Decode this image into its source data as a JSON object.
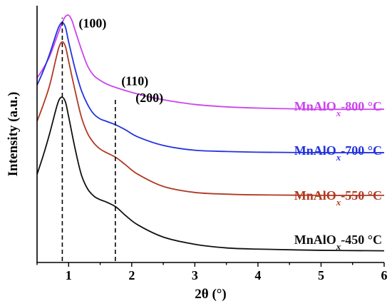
{
  "chart_data": {
    "type": "line",
    "xlabel": "2θ (°)",
    "ylabel": "Intensity (a.u.)",
    "xlim": [
      0.5,
      6
    ],
    "ylim": [
      0,
      100
    ],
    "xticks": [
      "1",
      "2",
      "3",
      "4",
      "5",
      "6"
    ],
    "yticks_shown": false,
    "grid": false,
    "legend_placement": "inline-right",
    "reference_lines": [
      {
        "x": 0.9,
        "style": "dashed",
        "ymin": 0,
        "ymax": 98
      },
      {
        "x": 1.74,
        "style": "dashed",
        "ymin": 0,
        "ymax": 65
      }
    ],
    "annotations": [
      {
        "text": "(100)",
        "x": 1.38,
        "y": 94
      },
      {
        "text": "(110)",
        "x": 2.05,
        "y": 70
      },
      {
        "text": "(200)",
        "x": 2.28,
        "y": 63
      }
    ],
    "series": [
      {
        "name": "MnAlO",
        "name_sub": "x",
        "name_suffix": "-800 °C",
        "color": "#cc44ee",
        "x": [
          0.5,
          0.6,
          0.7,
          0.8,
          0.9,
          0.95,
          1.0,
          1.05,
          1.1,
          1.2,
          1.3,
          1.4,
          1.5,
          1.6,
          1.75,
          2.0,
          2.3,
          2.6,
          3.0,
          3.5,
          4.0,
          5.0,
          6.0
        ],
        "y": [
          73,
          77,
          82,
          89,
          96,
          98.5,
          99,
          97,
          93,
          85,
          78,
          74,
          72,
          70.5,
          69,
          67,
          65,
          63.5,
          62,
          61,
          60.5,
          60,
          60
        ]
      },
      {
        "name": "MnAlO",
        "name_sub": "x",
        "name_suffix": "-700 °C",
        "color": "#2233dd",
        "x": [
          0.5,
          0.6,
          0.7,
          0.8,
          0.85,
          0.9,
          0.95,
          1.0,
          1.1,
          1.2,
          1.3,
          1.4,
          1.5,
          1.6,
          1.75,
          1.9,
          2.1,
          2.5,
          3.0,
          3.5,
          4.0,
          5.0,
          6.0
        ],
        "y": [
          70,
          76,
          83,
          91,
          94.5,
          96,
          94,
          88,
          77,
          68,
          62,
          58,
          56,
          55,
          53.5,
          51.5,
          48.5,
          45,
          43,
          42.5,
          42.2,
          42,
          42
        ]
      },
      {
        "name": "MnAlO",
        "name_sub": "x",
        "name_suffix": "-550 °C",
        "color": "#b03a22",
        "x": [
          0.5,
          0.6,
          0.7,
          0.8,
          0.85,
          0.9,
          0.95,
          1.0,
          1.1,
          1.2,
          1.3,
          1.4,
          1.5,
          1.6,
          1.75,
          1.9,
          2.1,
          2.5,
          3.0,
          3.5,
          4.0,
          5.0,
          6.0
        ],
        "y": [
          55,
          62,
          70,
          81,
          86,
          88,
          86,
          80,
          68,
          57,
          50,
          46,
          43.5,
          42,
          40,
          37,
          33,
          28,
          25.5,
          24.8,
          24.5,
          24.3,
          24.3
        ]
      },
      {
        "name": "MnAlO",
        "name_sub": "x",
        "name_suffix": "-450 °C",
        "color": "#111111",
        "x": [
          0.5,
          0.6,
          0.7,
          0.8,
          0.85,
          0.9,
          0.95,
          1.0,
          1.1,
          1.2,
          1.3,
          1.4,
          1.5,
          1.6,
          1.75,
          1.9,
          2.1,
          2.5,
          3.0,
          3.5,
          4.0,
          5.0,
          6.0
        ],
        "y": [
          33,
          41,
          50,
          60,
          64,
          65,
          63,
          57,
          44,
          33,
          27,
          24,
          22.5,
          21.5,
          19.5,
          16,
          12,
          7,
          4,
          2.5,
          2,
          1.5,
          1.3
        ]
      }
    ]
  }
}
